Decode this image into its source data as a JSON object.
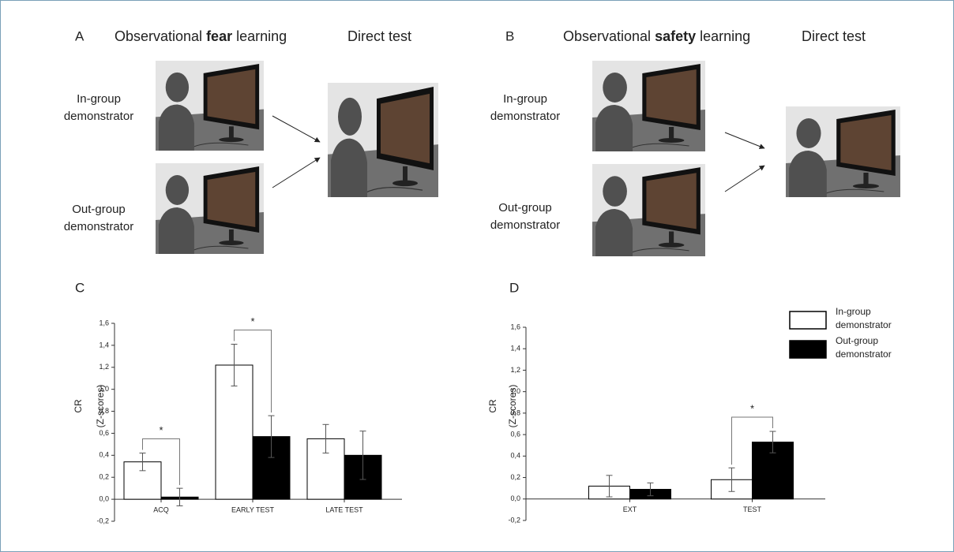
{
  "panels": [
    {
      "letter": "A",
      "title": [
        "Observational",
        "fear",
        "learning"
      ],
      "test": "Direct test",
      "labels": [
        "In-group demonstrator",
        "Out-group demonstrator"
      ]
    },
    {
      "letter": "B",
      "title": [
        "Observational",
        "safety",
        "learning"
      ],
      "test": "Direct test",
      "labels": [
        "In-group demonstrator",
        "Out-group demonstrator"
      ]
    }
  ],
  "chart_data": [
    {
      "type": "bar",
      "letter": "C",
      "ylabel": [
        "CR",
        "(Z-scores)"
      ],
      "categories": [
        "ACQ",
        "EARLY TEST",
        "LATE TEST"
      ],
      "series": [
        {
          "name": "In-group demonstrator",
          "color": "#ffffff",
          "values": [
            0.34,
            1.22,
            0.55
          ],
          "errors": [
            0.08,
            0.19,
            0.13
          ]
        },
        {
          "name": "Out-group demonstrator",
          "color": "#000000",
          "values": [
            0.02,
            0.57,
            0.4
          ],
          "errors": [
            0.08,
            0.19,
            0.22
          ]
        }
      ],
      "significance_labels": [
        "*",
        "*",
        null
      ],
      "ylim": [
        -0.2,
        1.6
      ],
      "yticks": [
        {
          "value": -0.2,
          "label": "-0,2"
        },
        {
          "value": 0,
          "label": "0,0"
        },
        {
          "value": 0.2,
          "label": "0,2"
        },
        {
          "value": 0.4,
          "label": "0,4"
        },
        {
          "value": 0.6,
          "label": "0,6"
        },
        {
          "value": 0.8,
          "label": "0,8"
        },
        {
          "value": 1.0,
          "label": "1,0"
        },
        {
          "value": 1.2,
          "label": "1,2"
        },
        {
          "value": 1.4,
          "label": "1,4"
        },
        {
          "value": 1.6,
          "label": "1,6"
        }
      ],
      "legend": false
    },
    {
      "type": "bar",
      "letter": "D",
      "ylabel": [
        "CR",
        "(Z-scores)"
      ],
      "categories": [
        "EXT",
        "TEST"
      ],
      "series": [
        {
          "name": "In-group demonstrator",
          "color": "#ffffff",
          "values": [
            0.12,
            0.18
          ],
          "errors": [
            0.1,
            0.11
          ]
        },
        {
          "name": "Out-group demonstrator",
          "color": "#000000",
          "values": [
            0.09,
            0.53
          ],
          "errors": [
            0.06,
            0.1
          ]
        }
      ],
      "significance_labels": [
        null,
        "*"
      ],
      "ylim": [
        -0.2,
        1.6
      ],
      "yticks": [
        {
          "value": -0.2,
          "label": "-0,2"
        },
        {
          "value": 0,
          "label": "0,0"
        },
        {
          "value": 0.2,
          "label": "0,2"
        },
        {
          "value": 0.4,
          "label": "0,4"
        },
        {
          "value": 0.6,
          "label": "0,6"
        },
        {
          "value": 0.8,
          "label": "0,8"
        },
        {
          "value": 1.0,
          "label": "1,0"
        },
        {
          "value": 1.2,
          "label": "1,2"
        },
        {
          "value": 1.4,
          "label": "1,4"
        },
        {
          "value": 1.6,
          "label": "1,6"
        }
      ],
      "legend": true
    }
  ]
}
